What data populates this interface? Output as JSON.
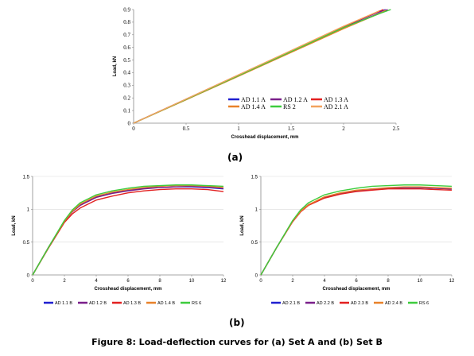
{
  "panel_labels": {
    "a": "(a)",
    "b": "(b)"
  },
  "caption": "Figure 8: Load-deflection curves for (a) Set A and (b) Set B",
  "chart_data": [
    {
      "type": "line",
      "xlabel": "Crosshead displacement, mm",
      "ylabel": "Load, kN",
      "xlim": [
        0,
        2.5
      ],
      "ylim": [
        0,
        0.9
      ],
      "xticks": [
        0,
        0.5,
        1,
        1.5,
        2,
        2.5
      ],
      "xtick_labels": [
        "0",
        "0.5",
        "1",
        "1.5",
        "2",
        "2.5"
      ],
      "yticks": [
        0,
        0.1,
        0.2,
        0.3,
        0.4,
        0.5,
        0.6,
        0.7,
        0.8,
        0.9
      ],
      "ytick_labels": [
        "0",
        "0.1",
        "0.2",
        "0.3",
        "0.4",
        "0.5",
        "0.6",
        "0.7",
        "0.8",
        "0.9"
      ],
      "grid": false,
      "legend_position": "bottom-right, inside",
      "series": [
        {
          "name": "AD 1.1 A",
          "color": "#1f1fd0",
          "x": [
            0,
            0.5,
            1.0,
            1.5,
            2.0,
            2.3,
            2.4
          ],
          "y": [
            0,
            0.19,
            0.38,
            0.57,
            0.76,
            0.87,
            0.9
          ]
        },
        {
          "name": "AD 1.2 A",
          "color": "#7a1f8a",
          "x": [
            0,
            0.5,
            1.0,
            1.5,
            2.0,
            2.33,
            2.42
          ],
          "y": [
            0,
            0.188,
            0.376,
            0.565,
            0.752,
            0.868,
            0.9
          ]
        },
        {
          "name": "AD 1.3 A",
          "color": "#e32020",
          "x": [
            0,
            0.5,
            1.0,
            1.5,
            2.0,
            2.3,
            2.38
          ],
          "y": [
            0,
            0.19,
            0.382,
            0.572,
            0.765,
            0.872,
            0.9
          ]
        },
        {
          "name": "AD 1.4 A",
          "color": "#e8822a",
          "x": [
            0,
            0.5,
            1.0,
            1.5,
            2.0,
            2.35,
            2.4
          ],
          "y": [
            0,
            0.185,
            0.372,
            0.56,
            0.748,
            0.872,
            0.895
          ]
        },
        {
          "name": "RS 2",
          "color": "#3dcc3d",
          "x": [
            0,
            0.5,
            1.0,
            1.5,
            2.0,
            2.35,
            2.45
          ],
          "y": [
            0,
            0.188,
            0.377,
            0.567,
            0.757,
            0.87,
            0.9
          ]
        },
        {
          "name": "AD 2.1 A",
          "color": "#f2a35e",
          "x": [
            0,
            0.5,
            1.0,
            1.5,
            2.0,
            2.3,
            2.34
          ],
          "y": [
            0,
            0.191,
            0.383,
            0.575,
            0.768,
            0.875,
            0.89
          ]
        }
      ]
    },
    {
      "type": "line",
      "xlabel": "Crosshead displacement, mm",
      "ylabel": "Load, kN",
      "xlim": [
        0,
        12
      ],
      "ylim": [
        0,
        1.5
      ],
      "xticks": [
        0,
        2,
        4,
        6,
        8,
        10,
        12
      ],
      "xtick_labels": [
        "0",
        "2",
        "4",
        "6",
        "8",
        "10",
        "12"
      ],
      "yticks": [
        0,
        0.5,
        1,
        1.5
      ],
      "ytick_labels": [
        "0",
        "0.5",
        "1",
        "1.5"
      ],
      "grid": true,
      "legend_position": "bottom, below axis",
      "series": [
        {
          "name": "AD 1.1 B",
          "color": "#1f1fd0",
          "x": [
            0,
            1,
            2,
            2.5,
            3,
            4,
            5,
            6,
            7,
            8,
            9,
            10,
            11,
            12
          ],
          "y": [
            0,
            0.42,
            0.82,
            0.97,
            1.07,
            1.19,
            1.25,
            1.29,
            1.32,
            1.33,
            1.34,
            1.34,
            1.33,
            1.31
          ]
        },
        {
          "name": "AD 1.2 B",
          "color": "#7a1f8a",
          "x": [
            0,
            1,
            2,
            2.5,
            3,
            4,
            5,
            6,
            7,
            8,
            9,
            10,
            11,
            12
          ],
          "y": [
            0,
            0.42,
            0.82,
            0.96,
            1.06,
            1.18,
            1.24,
            1.28,
            1.31,
            1.33,
            1.34,
            1.35,
            1.34,
            1.32
          ]
        },
        {
          "name": "AD 1.3 B",
          "color": "#e32020",
          "x": [
            0,
            1,
            2,
            2.5,
            3,
            4,
            5,
            6,
            7,
            8,
            9,
            10,
            11,
            12
          ],
          "y": [
            0,
            0.41,
            0.8,
            0.93,
            1.02,
            1.14,
            1.2,
            1.25,
            1.28,
            1.3,
            1.31,
            1.31,
            1.3,
            1.27
          ]
        },
        {
          "name": "AD 1.4 B",
          "color": "#e8822a",
          "x": [
            0,
            1,
            2,
            2.5,
            3,
            4,
            5,
            6,
            7,
            8,
            9,
            10,
            11,
            12
          ],
          "y": [
            0,
            0.42,
            0.82,
            0.97,
            1.08,
            1.2,
            1.26,
            1.3,
            1.33,
            1.35,
            1.36,
            1.36,
            1.35,
            1.33
          ]
        },
        {
          "name": "RS 6",
          "color": "#3dcc3d",
          "x": [
            0,
            1,
            2,
            2.5,
            3,
            4,
            5,
            6,
            7,
            8,
            9,
            10,
            11,
            12
          ],
          "y": [
            0,
            0.42,
            0.83,
            0.99,
            1.1,
            1.22,
            1.28,
            1.32,
            1.35,
            1.36,
            1.37,
            1.37,
            1.36,
            1.35
          ]
        }
      ]
    },
    {
      "type": "line",
      "xlabel": "Crosshead displacement, mm",
      "ylabel": "Load, kN",
      "xlim": [
        0,
        12
      ],
      "ylim": [
        0,
        1.5
      ],
      "xticks": [
        0,
        2,
        4,
        6,
        8,
        10,
        12
      ],
      "xtick_labels": [
        "0",
        "2",
        "4",
        "6",
        "8",
        "10",
        "12"
      ],
      "yticks": [
        0,
        0.5,
        1,
        1.5
      ],
      "ytick_labels": [
        "0",
        "0.5",
        "1",
        "1.5"
      ],
      "grid": true,
      "legend_position": "bottom, below axis",
      "series": [
        {
          "name": "AD 2.1 B",
          "color": "#1f1fd0",
          "x": [
            0,
            1,
            2,
            2.5,
            3,
            4,
            5,
            6,
            7,
            8,
            9,
            10,
            11,
            12
          ],
          "y": [
            0,
            0.42,
            0.82,
            0.97,
            1.07,
            1.18,
            1.24,
            1.28,
            1.31,
            1.32,
            1.33,
            1.33,
            1.32,
            1.31
          ]
        },
        {
          "name": "AD 2.2 B",
          "color": "#7a1f8a",
          "x": [
            0,
            1,
            2,
            2.5,
            3,
            4,
            5,
            6,
            7,
            8,
            9,
            10,
            11,
            12
          ],
          "y": [
            0,
            0.42,
            0.82,
            0.97,
            1.07,
            1.18,
            1.24,
            1.28,
            1.3,
            1.32,
            1.33,
            1.33,
            1.32,
            1.31
          ]
        },
        {
          "name": "AD 2.3 B",
          "color": "#e32020",
          "x": [
            0,
            1,
            2,
            2.5,
            3,
            4,
            5,
            6,
            7,
            8,
            9,
            10,
            11,
            12
          ],
          "y": [
            0,
            0.42,
            0.81,
            0.96,
            1.06,
            1.17,
            1.23,
            1.27,
            1.29,
            1.31,
            1.31,
            1.31,
            1.3,
            1.29
          ]
        },
        {
          "name": "AD 2.4 B",
          "color": "#e8822a",
          "x": [
            0,
            1,
            2,
            2.5,
            3,
            4,
            5,
            6,
            7,
            8,
            9,
            10,
            11,
            12
          ],
          "y": [
            0,
            0.42,
            0.82,
            0.97,
            1.07,
            1.19,
            1.25,
            1.29,
            1.31,
            1.33,
            1.34,
            1.34,
            1.33,
            1.32
          ]
        },
        {
          "name": "RS 6",
          "color": "#3dcc3d",
          "x": [
            0,
            1,
            2,
            2.5,
            3,
            4,
            5,
            6,
            7,
            8,
            9,
            10,
            11,
            12
          ],
          "y": [
            0,
            0.42,
            0.83,
            0.99,
            1.1,
            1.22,
            1.28,
            1.32,
            1.35,
            1.36,
            1.37,
            1.37,
            1.36,
            1.35
          ]
        }
      ]
    }
  ]
}
